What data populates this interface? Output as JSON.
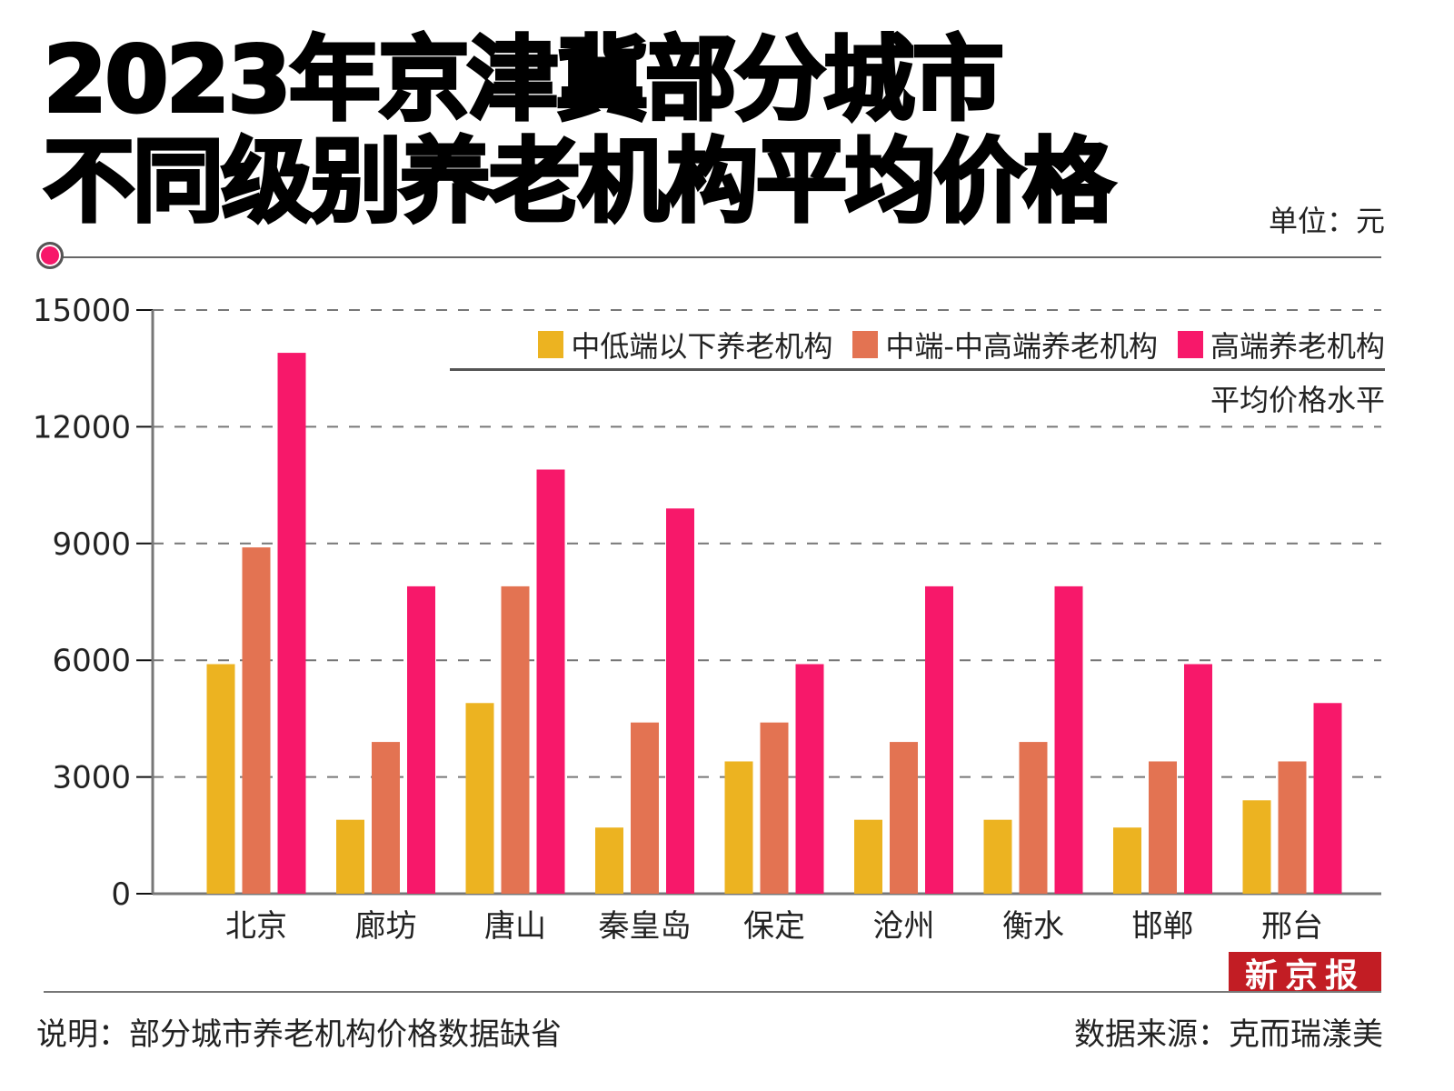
{
  "header": {
    "title_line1": "2023年京津冀部分城市",
    "title_line2": "不同级别养老机构平均价格",
    "unit": "单位：元"
  },
  "legend": {
    "items": [
      {
        "label": "中低端以下养老机构",
        "color": "#ecb321"
      },
      {
        "label": "中端-中高端养老机构",
        "color": "#e37352"
      },
      {
        "label": "高端养老机构",
        "color": "#f7186a"
      }
    ],
    "note": "平均价格水平"
  },
  "footer": {
    "logo": "新京报",
    "note": "说明：部分城市养老机构价格数据缺省",
    "source": "数据来源：克而瑞漾美"
  },
  "chart_data": {
    "type": "bar",
    "title": "2023年京津冀部分城市不同级别养老机构平均价格",
    "xlabel": "",
    "ylabel": "单位：元",
    "ylim": [
      0,
      15000
    ],
    "yticks": [
      0,
      3000,
      6000,
      9000,
      12000,
      15000
    ],
    "grid": true,
    "legend_position": "top-right",
    "categories": [
      "北京",
      "廊坊",
      "唐山",
      "秦皇岛",
      "保定",
      "沧州",
      "衡水",
      "邯郸",
      "邢台"
    ],
    "series": [
      {
        "name": "中低端以下养老机构",
        "color": "#ecb321",
        "values": [
          5900,
          1900,
          4900,
          1700,
          3400,
          1900,
          1900,
          1700,
          2400
        ]
      },
      {
        "name": "中端-中高端养老机构",
        "color": "#e37352",
        "values": [
          8900,
          3900,
          7900,
          4400,
          4400,
          3900,
          3900,
          3400,
          3400
        ]
      },
      {
        "name": "高端养老机构",
        "color": "#f7186a",
        "values": [
          13900,
          7900,
          10900,
          9900,
          5900,
          7900,
          7900,
          5900,
          4900
        ]
      }
    ]
  }
}
